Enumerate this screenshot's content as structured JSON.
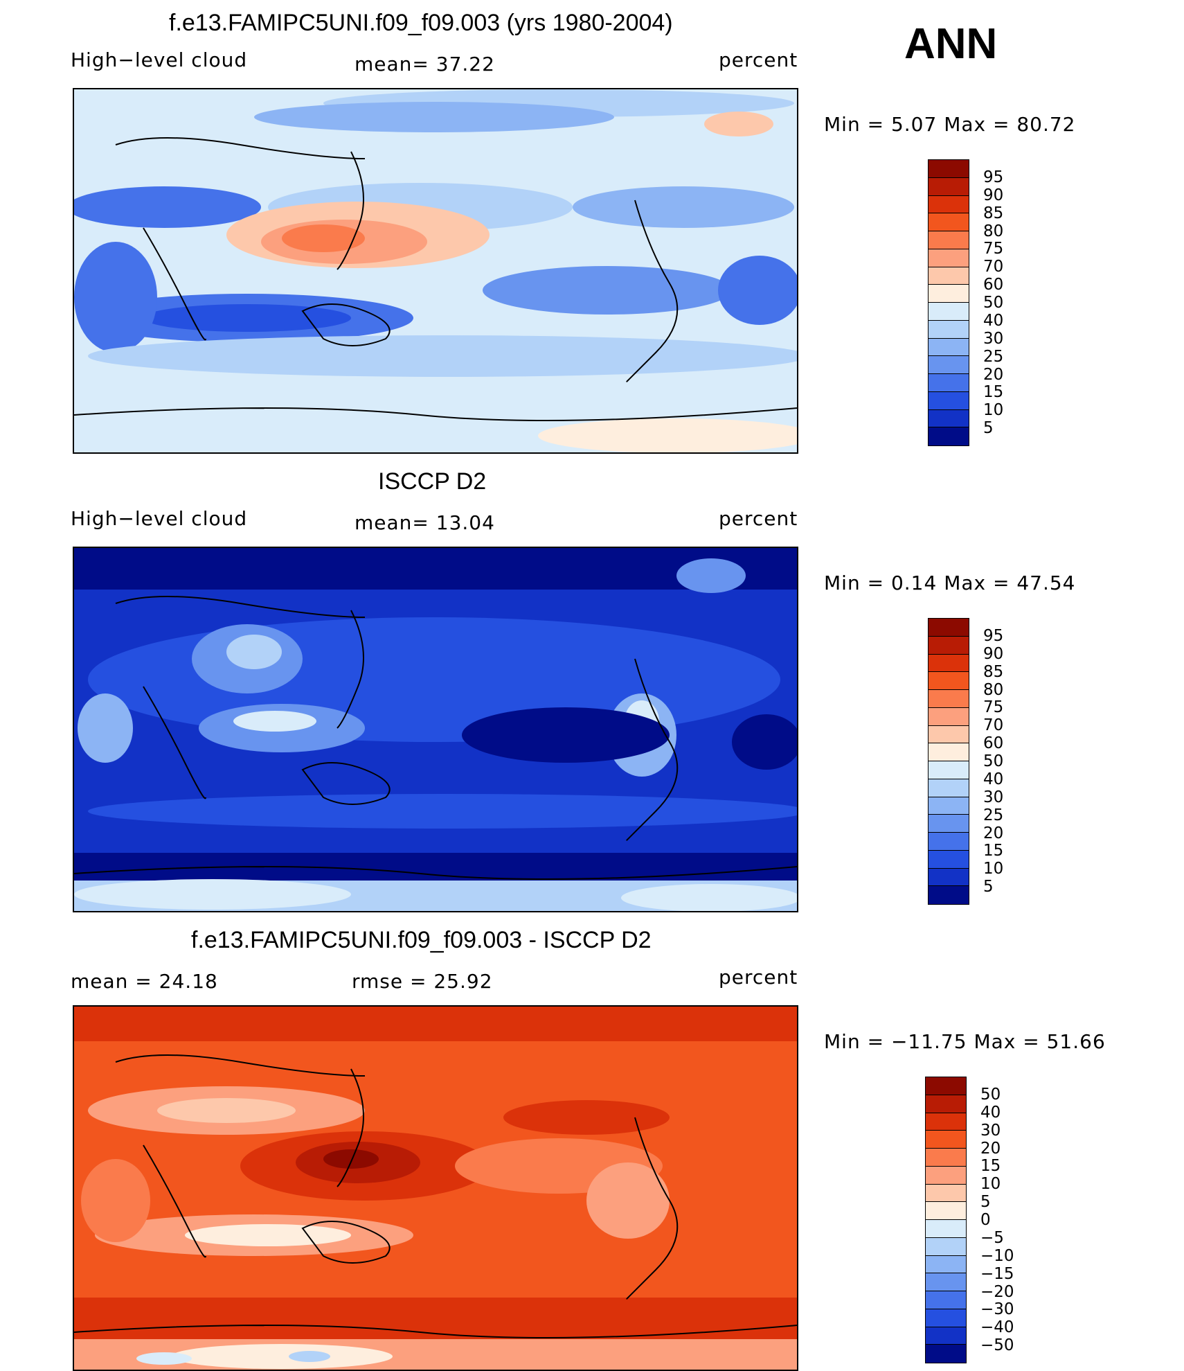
{
  "season": "ANN",
  "units": "percent",
  "panels": [
    {
      "id": "model",
      "title": "f.e13.FAMIPC5UNI.f09_f09.003 (yrs 1980-2004)",
      "left_label": "High−level cloud",
      "center_label": "mean=   37.22",
      "right_label": "percent",
      "minmax": "Min =    5.07 Max =   80.72",
      "colorbar_labels": [
        "95",
        "90",
        "85",
        "80",
        "75",
        "70",
        "60",
        "50",
        "40",
        "30",
        "25",
        "20",
        "15",
        "10",
        "5"
      ],
      "colorbar_colors": [
        "#8c0a00",
        "#b81c05",
        "#db320a",
        "#f2561e",
        "#fa7b4c",
        "#fca07e",
        "#fdc8ab",
        "#feeede",
        "#d9ecfa",
        "#b2d2f8",
        "#8cb4f4",
        "#6894ef",
        "#4572ea",
        "#2550e0",
        "#1232c6",
        "#000c88"
      ]
    },
    {
      "id": "obs",
      "title": "ISCCP D2",
      "left_label": "High−level cloud",
      "center_label": "mean=   13.04",
      "right_label": "percent",
      "minmax": "Min =    0.14 Max =   47.54",
      "colorbar_labels": [
        "95",
        "90",
        "85",
        "80",
        "75",
        "70",
        "60",
        "50",
        "40",
        "30",
        "25",
        "20",
        "15",
        "10",
        "5"
      ],
      "colorbar_colors": [
        "#8c0a00",
        "#b81c05",
        "#db320a",
        "#f2561e",
        "#fa7b4c",
        "#fca07e",
        "#fdc8ab",
        "#feeede",
        "#d9ecfa",
        "#b2d2f8",
        "#8cb4f4",
        "#6894ef",
        "#4572ea",
        "#2550e0",
        "#1232c6",
        "#000c88"
      ]
    },
    {
      "id": "diff",
      "title": "f.e13.FAMIPC5UNI.f09_f09.003 - ISCCP D2",
      "left_label": "mean =   24.18",
      "center_label": "rmse =   25.92",
      "right_label": "percent",
      "minmax": "Min = −11.75 Max =   51.66",
      "colorbar_labels": [
        "50",
        "40",
        "30",
        "20",
        "15",
        "10",
        "5",
        "0",
        "−5",
        "−10",
        "−15",
        "−20",
        "−30",
        "−40",
        "−50"
      ],
      "colorbar_colors": [
        "#8c0a00",
        "#b81c05",
        "#db320a",
        "#f2561e",
        "#fa7b4c",
        "#fca07e",
        "#fdc8ab",
        "#feeede",
        "#d9ecfa",
        "#b2d2f8",
        "#8cb4f4",
        "#6894ef",
        "#4572ea",
        "#2550e0",
        "#1232c6",
        "#000c88"
      ]
    }
  ],
  "chart_data": [
    {
      "type": "heatmap",
      "title": "f.e13.FAMIPC5UNI.f09_f09.003 (yrs 1980-2004)",
      "variable": "High−level cloud",
      "units": "percent",
      "mean": 37.22,
      "min": 5.07,
      "max": 80.72,
      "levels": [
        5,
        10,
        15,
        20,
        25,
        30,
        40,
        50,
        60,
        70,
        75,
        80,
        85,
        90,
        95
      ]
    },
    {
      "type": "heatmap",
      "title": "ISCCP D2",
      "variable": "High−level cloud",
      "units": "percent",
      "mean": 13.04,
      "min": 0.14,
      "max": 47.54,
      "levels": [
        5,
        10,
        15,
        20,
        25,
        30,
        40,
        50,
        60,
        70,
        75,
        80,
        85,
        90,
        95
      ]
    },
    {
      "type": "heatmap",
      "title": "f.e13.FAMIPC5UNI.f09_f09.003 - ISCCP D2",
      "units": "percent",
      "mean": 24.18,
      "rmse": 25.92,
      "min": -11.75,
      "max": 51.66,
      "levels": [
        -50,
        -40,
        -30,
        -20,
        -15,
        -10,
        -5,
        0,
        5,
        10,
        15,
        20,
        30,
        40,
        50
      ]
    }
  ]
}
